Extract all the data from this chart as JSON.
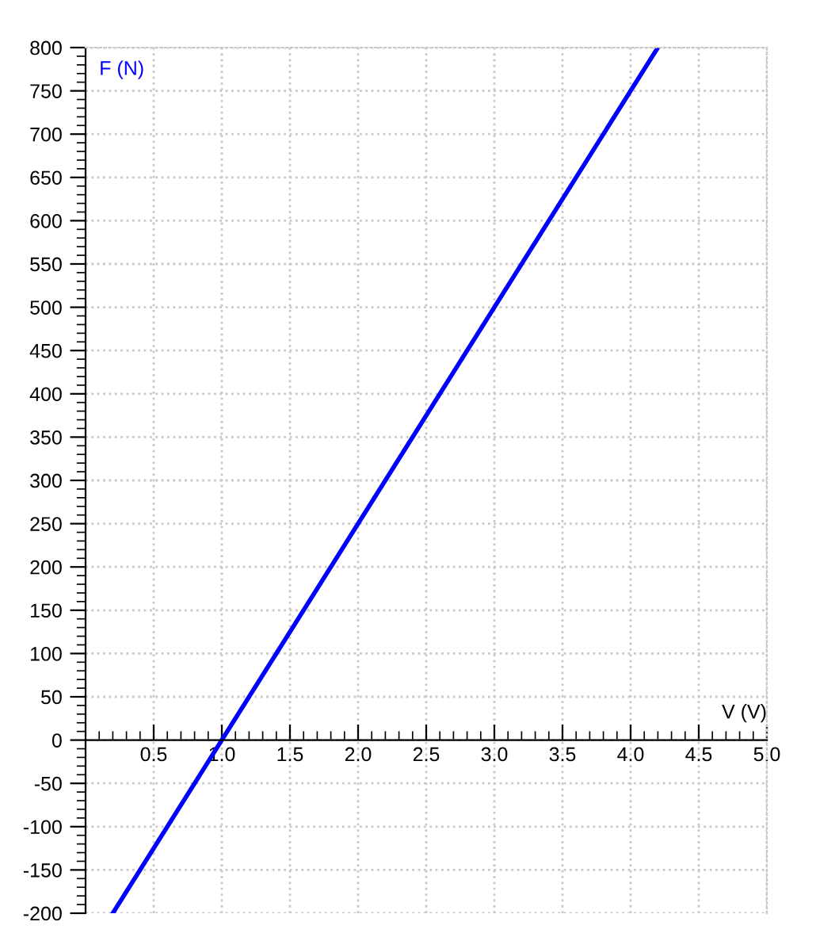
{
  "chart_data": {
    "type": "line",
    "xlabel": "V (V)",
    "ylabel": "F (N)",
    "x": [
      0.2,
      1.0,
      4.2
    ],
    "series": [
      {
        "color": "#0000ff",
        "values": [
          -200,
          0,
          800
        ]
      }
    ],
    "xlim": [
      0,
      5
    ],
    "ylim": [
      -200,
      800
    ],
    "xticks": [
      0.5,
      {
        "value": 1,
        "label": "1.0"
      },
      1.5,
      {
        "value": 2,
        "label": "2.0"
      },
      2.5,
      {
        "value": 3,
        "label": "3.0"
      },
      3.5,
      {
        "value": 4,
        "label": "4.0"
      },
      4.5,
      {
        "value": 5,
        "label": "5.0"
      }
    ],
    "yticks": [
      -200,
      -150,
      -100,
      -50,
      0,
      50,
      100,
      150,
      200,
      250,
      300,
      350,
      400,
      450,
      500,
      550,
      600,
      650,
      700,
      750,
      800
    ],
    "grid": true,
    "legend": false,
    "marker": "none",
    "line_style": "solid"
  }
}
